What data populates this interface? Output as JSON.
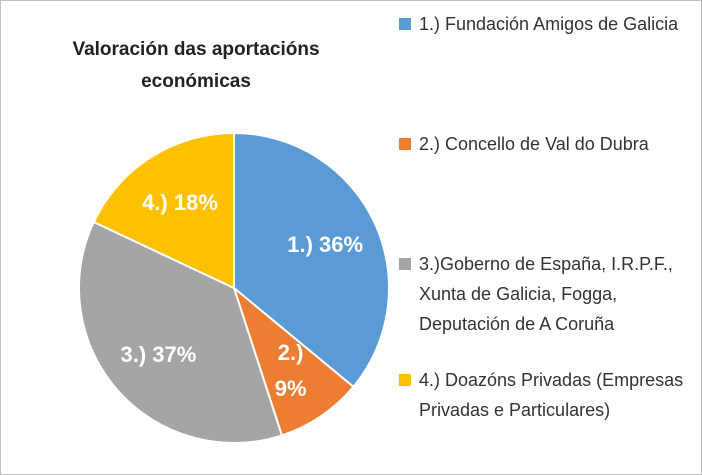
{
  "chart_data": {
    "type": "pie",
    "title": "Valoración das aportacións económicas",
    "categories": [
      "1.) Fundación Amigos de Galicia",
      "2.) Concello de Val do Dubra",
      "3.)Goberno de España, I.R.P.F., Xunta de Galicia, Fogga, Deputación de A Coruña",
      "4.) Doazóns Privadas (Empresas Privadas e Particulares)"
    ],
    "values": [
      36,
      9,
      37,
      18
    ],
    "value_labels": [
      "1.) 36%",
      "2.) 9%",
      "3.) 37%",
      "4.) 18%"
    ],
    "colors": [
      "#5b9bd5",
      "#ed7d31",
      "#a5a5a5",
      "#ffc000"
    ],
    "legend": "right"
  }
}
